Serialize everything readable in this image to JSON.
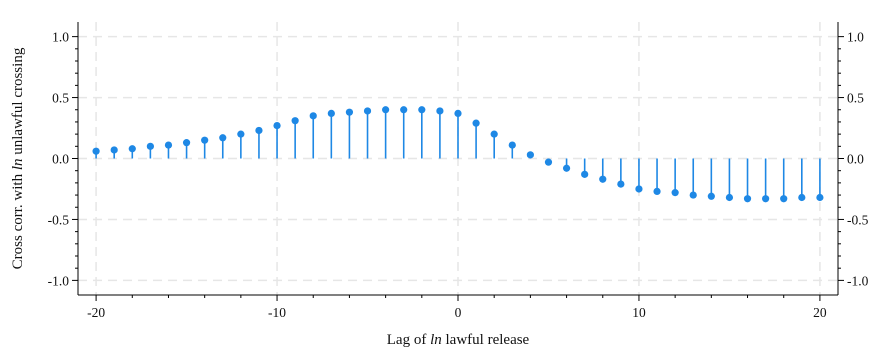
{
  "chart_data": {
    "type": "stem",
    "xlabel_parts": [
      "Lag of ",
      "ln",
      " lawful release"
    ],
    "ylabel_parts": [
      "Cross corr. with ",
      "ln",
      " unlawful crossing"
    ],
    "xlim": [
      -21,
      21
    ],
    "ylim": [
      -1.12,
      1.12
    ],
    "xticks": [
      -20,
      -10,
      0,
      10,
      20
    ],
    "xtick_labels": [
      "-20",
      "-10",
      "0",
      "10",
      "20"
    ],
    "yticks": [
      1.0,
      0.5,
      0.0,
      -0.5,
      -1.0
    ],
    "ytick_labels": [
      "1.0",
      "0.5",
      "0.0",
      "-0.5",
      "-1.0"
    ],
    "grid": true,
    "color": "#1e88e5",
    "x": [
      -20,
      -19,
      -18,
      -17,
      -16,
      -15,
      -14,
      -13,
      -12,
      -11,
      -10,
      -9,
      -8,
      -7,
      -6,
      -5,
      -4,
      -3,
      -2,
      -1,
      0,
      1,
      2,
      3,
      4,
      5,
      6,
      7,
      8,
      9,
      10,
      11,
      12,
      13,
      14,
      15,
      16,
      17,
      18,
      19,
      20
    ],
    "y": [
      0.06,
      0.07,
      0.08,
      0.1,
      0.11,
      0.13,
      0.15,
      0.17,
      0.2,
      0.23,
      0.27,
      0.31,
      0.35,
      0.37,
      0.38,
      0.39,
      0.4,
      0.4,
      0.4,
      0.39,
      0.37,
      0.29,
      0.2,
      0.11,
      0.03,
      -0.03,
      -0.08,
      -0.13,
      -0.17,
      -0.21,
      -0.25,
      -0.27,
      -0.28,
      -0.3,
      -0.31,
      -0.32,
      -0.33,
      -0.33,
      -0.33,
      -0.32,
      -0.32
    ]
  }
}
